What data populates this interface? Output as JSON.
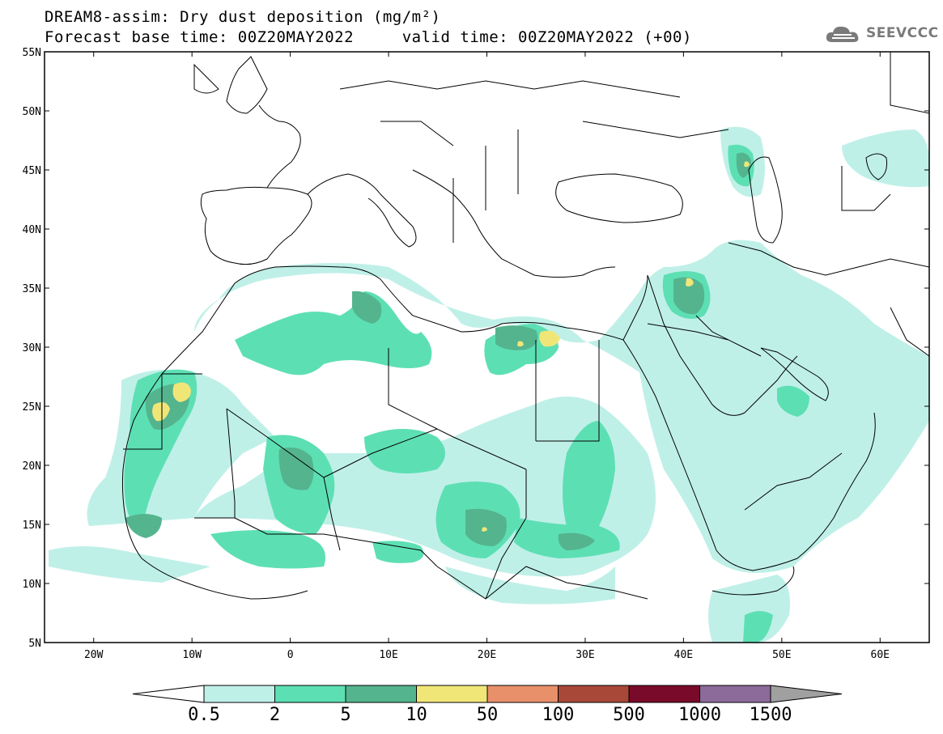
{
  "header": {
    "title_line1": "DREAM8-assim: Dry dust deposition (mg/m²)",
    "title_line2": "Forecast base time: 00Z20MAY2022     valid time: 00Z20MAY2022 (+00)"
  },
  "logo": {
    "text": "SEEVCCC",
    "icon": "cloud-icon"
  },
  "map": {
    "extent": {
      "lon": [
        -25,
        65
      ],
      "lat": [
        5,
        55
      ]
    },
    "lat_ticks": [
      {
        "value": 55,
        "label": "55N"
      },
      {
        "value": 50,
        "label": "50N"
      },
      {
        "value": 45,
        "label": "45N"
      },
      {
        "value": 40,
        "label": "40N"
      },
      {
        "value": 35,
        "label": "35N"
      },
      {
        "value": 30,
        "label": "30N"
      },
      {
        "value": 25,
        "label": "25N"
      },
      {
        "value": 20,
        "label": "20N"
      },
      {
        "value": 15,
        "label": "15N"
      },
      {
        "value": 10,
        "label": "10N"
      },
      {
        "value": 5,
        "label": "5N"
      }
    ],
    "lon_ticks": [
      {
        "value": -20,
        "label": "20W"
      },
      {
        "value": -10,
        "label": "10W"
      },
      {
        "value": 0,
        "label": "0"
      },
      {
        "value": 10,
        "label": "10E"
      },
      {
        "value": 20,
        "label": "20E"
      },
      {
        "value": 30,
        "label": "30E"
      },
      {
        "value": 40,
        "label": "40E"
      },
      {
        "value": 50,
        "label": "50E"
      },
      {
        "value": 60,
        "label": "60E"
      }
    ]
  },
  "colorbar": {
    "under_color": "#ffffff",
    "over_color": "#a0a0a0",
    "bins": [
      {
        "color": "#bff0e8"
      },
      {
        "color": "#5ddfb4"
      },
      {
        "color": "#54b48e"
      },
      {
        "color": "#f0e678"
      },
      {
        "color": "#e8906a"
      },
      {
        "color": "#a84838"
      },
      {
        "color": "#7a0a2a"
      },
      {
        "color": "#8c6a9a"
      }
    ],
    "labels": [
      "0.5",
      "2",
      "5",
      "10",
      "50",
      "100",
      "500",
      "1000",
      "1500"
    ]
  },
  "colors": {
    "level_0_5": "#bff0e8",
    "level_2": "#5ddfb4",
    "level_5": "#54b48e",
    "level_10": "#f0e678"
  }
}
